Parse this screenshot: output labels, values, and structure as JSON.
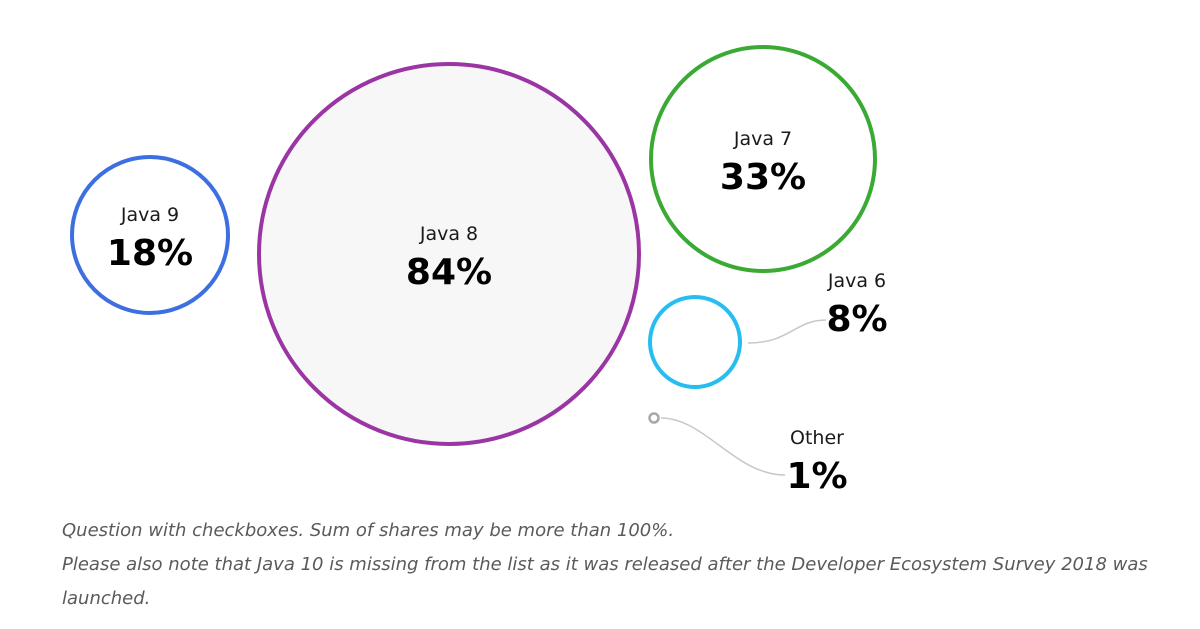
{
  "chart_data": {
    "type": "bubble",
    "series": [
      {
        "name": "Java 9",
        "value": 18,
        "label": "18%",
        "color": "#3d6fe0",
        "fill": "#ffffff"
      },
      {
        "name": "Java 8",
        "value": 84,
        "label": "84%",
        "color": "#9b35a3",
        "fill": "#f7f7f8"
      },
      {
        "name": "Java 7",
        "value": 33,
        "label": "33%",
        "color": "#3aaa35",
        "fill": "#ffffff"
      },
      {
        "name": "Java 6",
        "value": 8,
        "label": "8%",
        "color": "#27bdf0",
        "fill": "#ffffff"
      },
      {
        "name": "Other",
        "value": 1,
        "label": "1%",
        "color": "#a8a8a8",
        "fill": "#ffffff"
      }
    ],
    "notes": [
      "Question with checkboxes. Sum of shares may be more than 100%.",
      "Please also note that Java 10 is missing from the list as it was released after the Developer Ecosystem Survey 2018 was launched."
    ]
  }
}
